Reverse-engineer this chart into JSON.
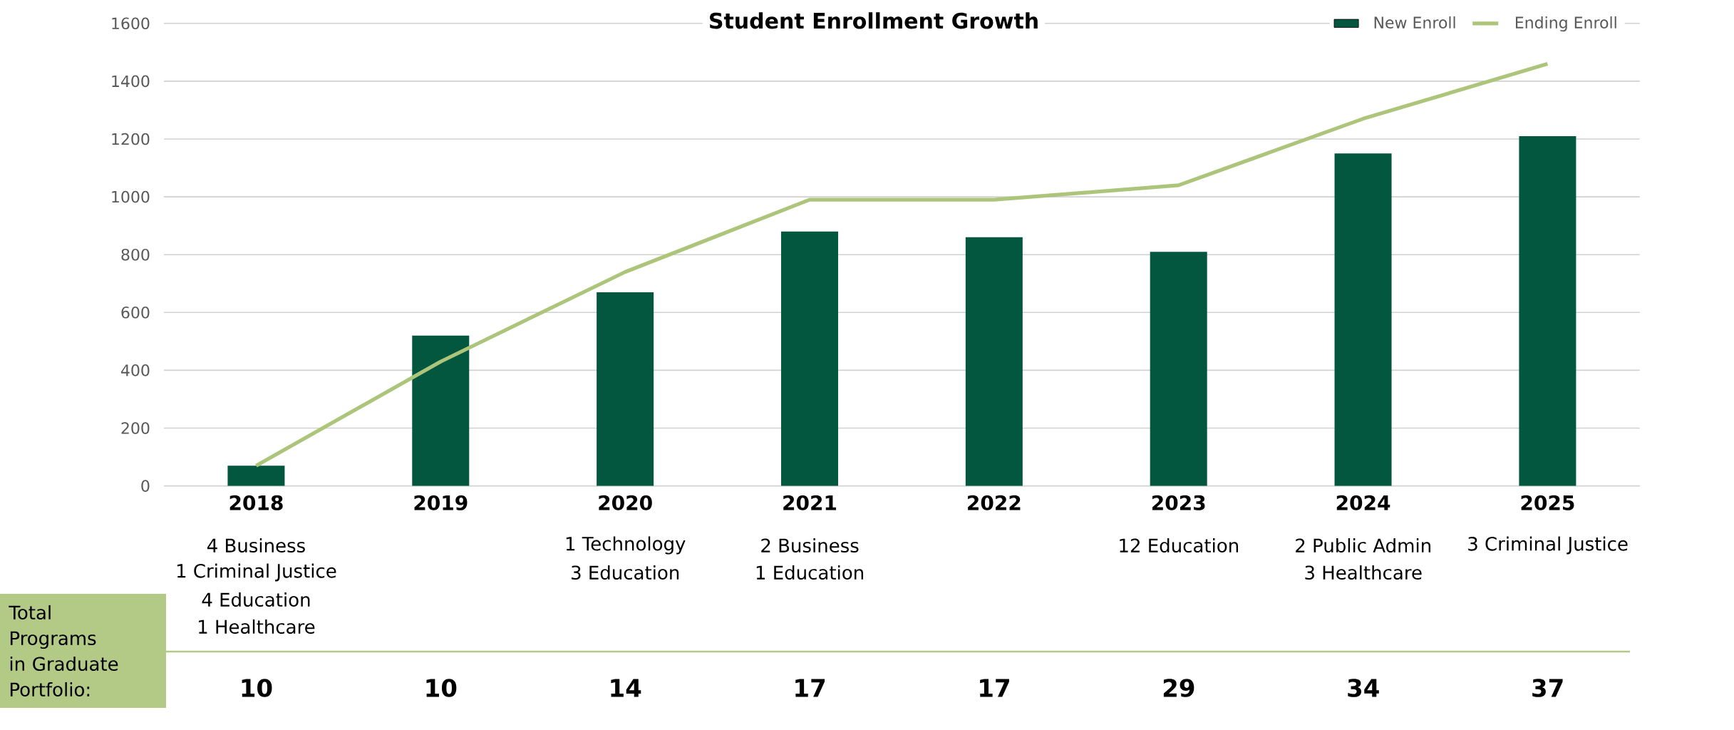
{
  "chart_data": {
    "type": "bar",
    "title": "Student Enrollment Growth",
    "categories": [
      "2018",
      "2019",
      "2020",
      "2021",
      "2022",
      "2023",
      "2024",
      "2025"
    ],
    "series": [
      {
        "name": "New Enroll",
        "color": "#03573f",
        "values": [
          70,
          520,
          670,
          880,
          860,
          810,
          1150,
          1210
        ]
      },
      {
        "name": "Ending Enroll",
        "type": "line",
        "color": "#adc57a",
        "values": [
          70,
          430,
          740,
          990,
          990,
          1040,
          1270,
          1460
        ]
      }
    ],
    "ylim": [
      0,
      1600
    ],
    "yticks": [
      0,
      200,
      400,
      600,
      800,
      1000,
      1200,
      1400,
      1600
    ],
    "grid": "y",
    "legend": "top right",
    "annotations": [
      "4 Business",
      "1 Criminal Justice",
      "4 Education",
      "1 Healthcare",
      "1 Technology",
      "3 Education",
      "2 Business",
      "1 Education",
      "12 Education",
      "2 Public Admin",
      "3 Healthcare",
      "3 Criminal Justice",
      "Total Programs in Graduate Portfolio:",
      "10",
      "10",
      "14",
      "17",
      "17",
      "29",
      "34",
      "37"
    ]
  }
}
